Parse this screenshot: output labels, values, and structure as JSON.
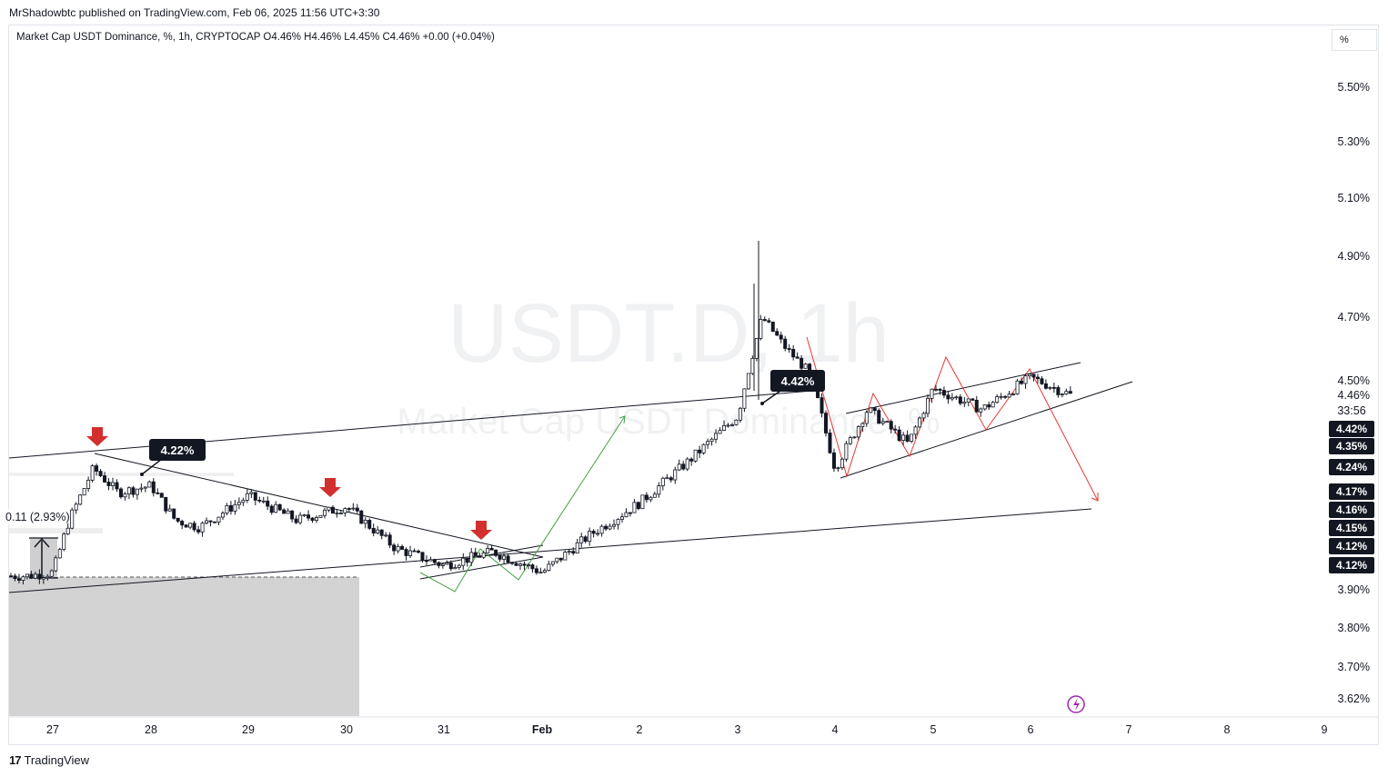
{
  "header": {
    "publisher": "MrShadowbtc published on TradingView.com, Feb 06, 2025 11:56 UTC+3:30"
  },
  "legend": {
    "text": "Market Cap USDT Dominance, %, 1h, CRYPTOCAP  O4.46%  H4.46%  L4.45%  C4.46%  +0.00 (+0.04%)"
  },
  "scale_button": "%",
  "watermark": {
    "symbol": "USDT.D, 1h",
    "name": "Market Cap USDT Dominance, %"
  },
  "footer": {
    "brand": "TradingView",
    "logo": "17"
  },
  "chart_data": {
    "type": "candlestick",
    "x_ticks": [
      "27",
      "28",
      "29",
      "30",
      "31",
      "Feb",
      "2",
      "3",
      "4",
      "5",
      "6",
      "7",
      "8",
      "9"
    ],
    "y_ticks": [
      "5.50%",
      "5.30%",
      "5.10%",
      "4.90%",
      "4.70%",
      "4.50%",
      "4.46%",
      "3.90%",
      "3.80%",
      "3.70%",
      "3.62%"
    ],
    "countdown": "33:56",
    "price_badges": [
      "4.42%",
      "4.35%",
      "4.24%",
      "4.17%",
      "4.16%",
      "4.15%",
      "4.12%",
      "4.12%"
    ],
    "annotations": {
      "callout_left": "4.22%",
      "callout_mid": "4.42%",
      "measure_label": "0.11 (2.93%)"
    },
    "close_path": [
      {
        "date": "Jan 26 18:00",
        "v": 3.94
      },
      {
        "date": "Jan 27 00:00",
        "v": 3.95
      },
      {
        "date": "Jan 27 04:00",
        "v": 4.1
      },
      {
        "date": "Jan 27 10:00",
        "v": 4.25
      },
      {
        "date": "Jan 27 16:00",
        "v": 4.18
      },
      {
        "date": "Jan 28 00:00",
        "v": 4.2
      },
      {
        "date": "Jan 28 06:00",
        "v": 4.1
      },
      {
        "date": "Jan 28 12:00",
        "v": 4.08
      },
      {
        "date": "Jan 29 00:00",
        "v": 4.17
      },
      {
        "date": "Jan 29 12:00",
        "v": 4.1
      },
      {
        "date": "Jan 30 00:00",
        "v": 4.14
      },
      {
        "date": "Jan 30 12:00",
        "v": 4.02
      },
      {
        "date": "Jan 31 00:00",
        "v": 3.97
      },
      {
        "date": "Jan 31 12:00",
        "v": 4.01
      },
      {
        "date": "Feb 01 00:00",
        "v": 3.95
      },
      {
        "date": "Feb 01 12:00",
        "v": 4.06
      },
      {
        "date": "Feb 02 00:00",
        "v": 4.15
      },
      {
        "date": "Feb 02 12:00",
        "v": 4.27
      },
      {
        "date": "Feb 03 00:00",
        "v": 4.4
      },
      {
        "date": "Feb 03 06:00",
        "v": 4.7
      },
      {
        "date": "Feb 03 12:00",
        "v": 4.6
      },
      {
        "date": "Feb 03 18:00",
        "v": 4.52
      },
      {
        "date": "Feb 04 00:00",
        "v": 4.25
      },
      {
        "date": "Feb 04 08:00",
        "v": 4.42
      },
      {
        "date": "Feb 04 18:00",
        "v": 4.32
      },
      {
        "date": "Feb 05 00:00",
        "v": 4.48
      },
      {
        "date": "Feb 05 12:00",
        "v": 4.42
      },
      {
        "date": "Feb 06 00:00",
        "v": 4.51
      },
      {
        "date": "Feb 06 10:00",
        "v": 4.46
      }
    ],
    "colors": {
      "up": "#131722",
      "down": "#131722",
      "drawing_red": "#e53935",
      "drawing_green": "#43a047",
      "arrow_marker": "#d32f2f"
    }
  }
}
